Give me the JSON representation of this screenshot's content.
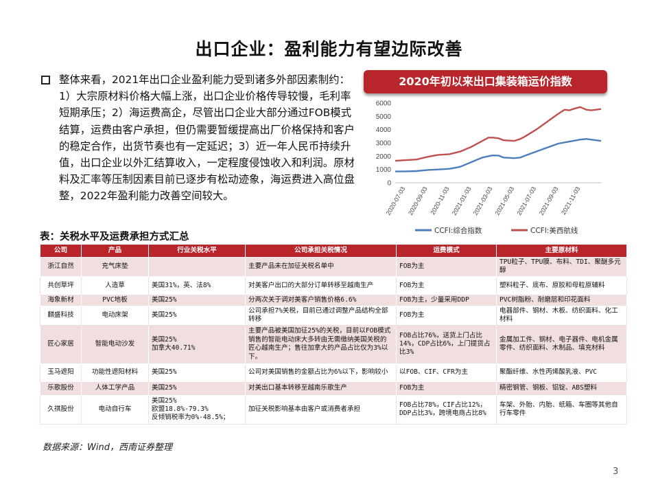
{
  "page": {
    "title": "出口企业：盈利能力有望边际改善",
    "paragraph": "整体来看，2021年出口企业盈利能力受到诸多外部因素制约：1）大宗原材料价格大幅上涨，出口企业价格传导较慢，毛利率短期承压；2）海运费高企，尽管出口企业大部分通过FOB模式结算，运费由客户承担，但仍需要暂缓提高出厂价格保持和客户的稳定合作，出货节奏也有一定延迟；3）近一年人民币持续升值，出口企业以外汇结算收入，一定程度侵蚀收入和利润。原材料及汇率等压制因素目前已逐步有松动迹象，海运费进入高位盘整，2022年盈利能力改善空间较大。",
    "page_number": "3",
    "source": "数据来源：Wind，西南证券整理"
  },
  "chart_data": {
    "type": "line",
    "title": "2020年初以来出口集装箱运价指数",
    "ylim": [
      0,
      6000
    ],
    "yticks": [
      0,
      1000,
      2000,
      3000,
      4000,
      5000,
      6000
    ],
    "x_tick_labels": [
      "2020-07-03",
      "2020-09-03",
      "2020-11-03",
      "2021-01-03",
      "2021-03-03",
      "2021-05-03",
      "2021-07-03",
      "2021-09-03",
      "2021-11-03"
    ],
    "x_start": "2020-06-05",
    "x_end": "2021-12-31",
    "legend_position": "bottom",
    "series": [
      {
        "name": "CCFI:综合指数",
        "color": "#4a7ebb",
        "points": [
          [
            "2020-06-05",
            850
          ],
          [
            "2020-07-03",
            860
          ],
          [
            "2020-08-03",
            880
          ],
          [
            "2020-09-03",
            960
          ],
          [
            "2020-10-03",
            1000
          ],
          [
            "2020-11-03",
            1050
          ],
          [
            "2020-12-03",
            1200
          ],
          [
            "2021-01-03",
            1550
          ],
          [
            "2021-02-03",
            1900
          ],
          [
            "2021-02-20",
            2000
          ],
          [
            "2021-03-03",
            2060
          ],
          [
            "2021-03-20",
            2050
          ],
          [
            "2021-04-03",
            1900
          ],
          [
            "2021-05-03",
            1850
          ],
          [
            "2021-05-20",
            1900
          ],
          [
            "2021-06-03",
            2050
          ],
          [
            "2021-07-03",
            2350
          ],
          [
            "2021-08-03",
            2650
          ],
          [
            "2021-09-03",
            2950
          ],
          [
            "2021-10-03",
            3100
          ],
          [
            "2021-11-03",
            3250
          ],
          [
            "2021-11-20",
            3300
          ],
          [
            "2021-12-03",
            3250
          ],
          [
            "2021-12-31",
            3150
          ]
        ]
      },
      {
        "name": "CCFI:美西航线",
        "color": "#c0504d",
        "points": [
          [
            "2020-06-05",
            1650
          ],
          [
            "2020-07-03",
            1700
          ],
          [
            "2020-08-03",
            1750
          ],
          [
            "2020-09-03",
            1950
          ],
          [
            "2020-10-03",
            2100
          ],
          [
            "2020-11-03",
            2150
          ],
          [
            "2020-12-03",
            2350
          ],
          [
            "2021-01-03",
            2700
          ],
          [
            "2021-02-03",
            3150
          ],
          [
            "2021-02-20",
            3400
          ],
          [
            "2021-03-03",
            3400
          ],
          [
            "2021-03-20",
            3350
          ],
          [
            "2021-04-03",
            3200
          ],
          [
            "2021-05-03",
            3150
          ],
          [
            "2021-05-20",
            3300
          ],
          [
            "2021-06-03",
            3500
          ],
          [
            "2021-07-03",
            4000
          ],
          [
            "2021-08-03",
            4600
          ],
          [
            "2021-09-03",
            5200
          ],
          [
            "2021-09-20",
            5500
          ],
          [
            "2021-10-03",
            5450
          ],
          [
            "2021-10-20",
            5600
          ],
          [
            "2021-11-03",
            5700
          ],
          [
            "2021-11-20",
            5500
          ],
          [
            "2021-12-03",
            5450
          ],
          [
            "2021-12-31",
            5550
          ]
        ]
      }
    ]
  },
  "table": {
    "title": "表：关税水平及运费承担方式汇总",
    "headers": [
      "公司",
      "产品",
      "行业关税水平",
      "公司承担关税情况",
      "运费模式",
      "主要原材料"
    ],
    "rows": [
      [
        "浙江自然",
        "充气床垫",
        "",
        "主要产品未在加征关税名单中",
        "FOB为主",
        "TPU粒子、TPU膜、布料、TDI、聚醚多元醇"
      ],
      [
        "共创草坪",
        "人造草",
        "美国31%，英、法8%",
        "对美客户出口的大部分订单转移至越南生产",
        "FOB为主",
        "塑料粒子、底布、原胶和母粒原辅料"
      ],
      [
        "海象新材",
        "PVC地板",
        "美国25%",
        "分两次关于调对美客户销售价格6.6%",
        "FOB为主，少量采用DDP",
        "PVC树脂粉、耐磨层和印花面料"
      ],
      [
        "麒盛科技",
        "电动床架",
        "美国25%",
        "公司承担7%关税，目前已通过调整产品结构全部转移",
        "FOB为主",
        "电器部件、钢材、木板、纺织面料、化工材料"
      ],
      [
        "匠心家居",
        "智能电动沙发",
        "美国25%\n加拿大40.71%",
        "主要产品被美国加征25%的关税，目前以FOB模式销售的智能电动床大多转由无需缴纳美国关税的匠心越南生产；售往加拿大的产品占比仅为3%以下。",
        "FOB占比76%，送货上门占比14%，CDP占比6%，上门提货占比3%",
        "金属加工件、钢材、电子器件、电机金属零件、纺织面料、木制品、填充材料"
      ],
      [
        "玉马遮阳",
        "功能性遮阳材料",
        "美国25%",
        "公司对美国销售的金额占比为6%以下，影响较小",
        "以FOB、CIF、CFR为主",
        "聚酯纤维、水性丙烯酸乳液、PVC"
      ],
      [
        "乐歌股份",
        "人体工学产品",
        "美国25%",
        "对美出口基本转移至越南乐歌生产",
        "FOB为主",
        "精密钢管、钢板、铝锭、ABS塑料"
      ],
      [
        "久祺股份",
        "电动自行车",
        "美国25%\n欧盟18.8%-79.3%\n反倾销税率为0%-48.5%；",
        "加征关税影响基本由客户或消费者承担",
        "FOB占比78%，CIF占比12%，DDP占比3%，跨境电商占比8%",
        "车架、外胎、内胎、纸箱、车圈等其他自行车零件"
      ]
    ]
  }
}
